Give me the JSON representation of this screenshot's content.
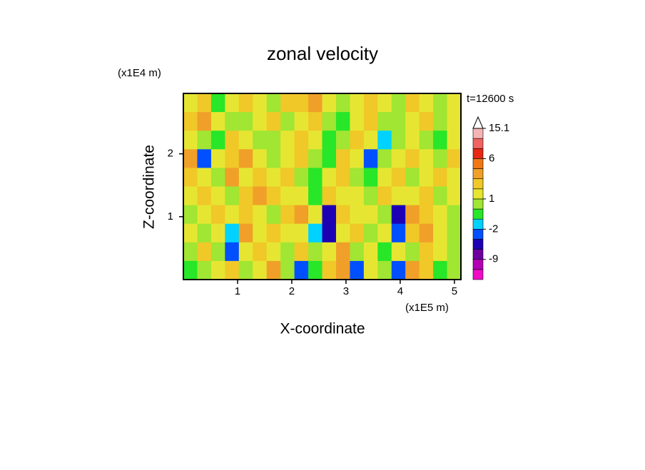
{
  "chart_data": {
    "type": "contour",
    "title": "zonal velocity",
    "x_label": "X-coordinate",
    "y_label": "Z-coordinate",
    "x_unit": "(x1E5 m)",
    "y_unit": "(x1E4 m)",
    "annotation": "t=12600 s",
    "xlim": [
      0,
      5.12
    ],
    "ylim": [
      0,
      2.96
    ],
    "xticks": [
      1,
      2,
      3,
      4,
      5
    ],
    "yticks": [
      1,
      2
    ],
    "z": [
      [
        1,
        2,
        -1,
        1,
        2,
        1,
        0,
        2,
        2,
        3,
        1,
        0,
        1,
        2,
        1,
        0,
        2,
        1,
        0,
        1
      ],
      [
        2,
        3,
        1,
        0,
        0,
        1,
        2,
        0,
        1,
        2,
        0,
        -1,
        1,
        2,
        0,
        0,
        1,
        2,
        0,
        1
      ],
      [
        1,
        0,
        -1,
        2,
        1,
        0,
        0,
        1,
        2,
        1,
        -1,
        0,
        2,
        1,
        -2,
        0,
        1,
        0,
        -1,
        1
      ],
      [
        3,
        -4,
        1,
        2,
        3,
        1,
        0,
        1,
        2,
        0,
        -1,
        2,
        1,
        -4,
        0,
        1,
        2,
        1,
        0,
        2
      ],
      [
        2,
        1,
        0,
        3,
        1,
        2,
        1,
        2,
        0,
        -1,
        1,
        2,
        0,
        -1,
        1,
        2,
        0,
        1,
        2,
        1
      ],
      [
        1,
        2,
        1,
        0,
        2,
        3,
        2,
        1,
        1,
        -1,
        2,
        1,
        1,
        0,
        2,
        1,
        1,
        2,
        0,
        1
      ],
      [
        0,
        1,
        2,
        1,
        2,
        1,
        0,
        2,
        3,
        1,
        -6,
        2,
        1,
        1,
        0,
        -5,
        3,
        2,
        1,
        0
      ],
      [
        1,
        0,
        1,
        -2,
        3,
        1,
        2,
        1,
        1,
        -2,
        -6,
        1,
        2,
        0,
        1,
        -4,
        2,
        3,
        1,
        0
      ],
      [
        0,
        2,
        0,
        -3,
        1,
        2,
        1,
        0,
        2,
        0,
        1,
        3,
        0,
        1,
        -1,
        1,
        0,
        2,
        1,
        0
      ],
      [
        -1,
        0,
        1,
        2,
        0,
        1,
        3,
        0,
        -4,
        -1,
        2,
        3,
        -4,
        1,
        0,
        -3,
        3,
        2,
        -1,
        0
      ]
    ],
    "levels": [
      -12,
      -9,
      -6,
      -4,
      -2,
      -1,
      0,
      1,
      2,
      3,
      4,
      6,
      9,
      12,
      15.1
    ],
    "colors": [
      "#f00ac8",
      "#b400b4",
      "#6e00a0",
      "#1e00b4",
      "#0050ff",
      "#00d2ff",
      "#28e628",
      "#a0e632",
      "#e6e632",
      "#f0c828",
      "#f0a028",
      "#f07814",
      "#e62814",
      "#f06464",
      "#f5b4b4",
      "#ffffff"
    ],
    "colorbar_ticks": [
      15.1,
      6,
      1,
      -2,
      -9
    ]
  }
}
